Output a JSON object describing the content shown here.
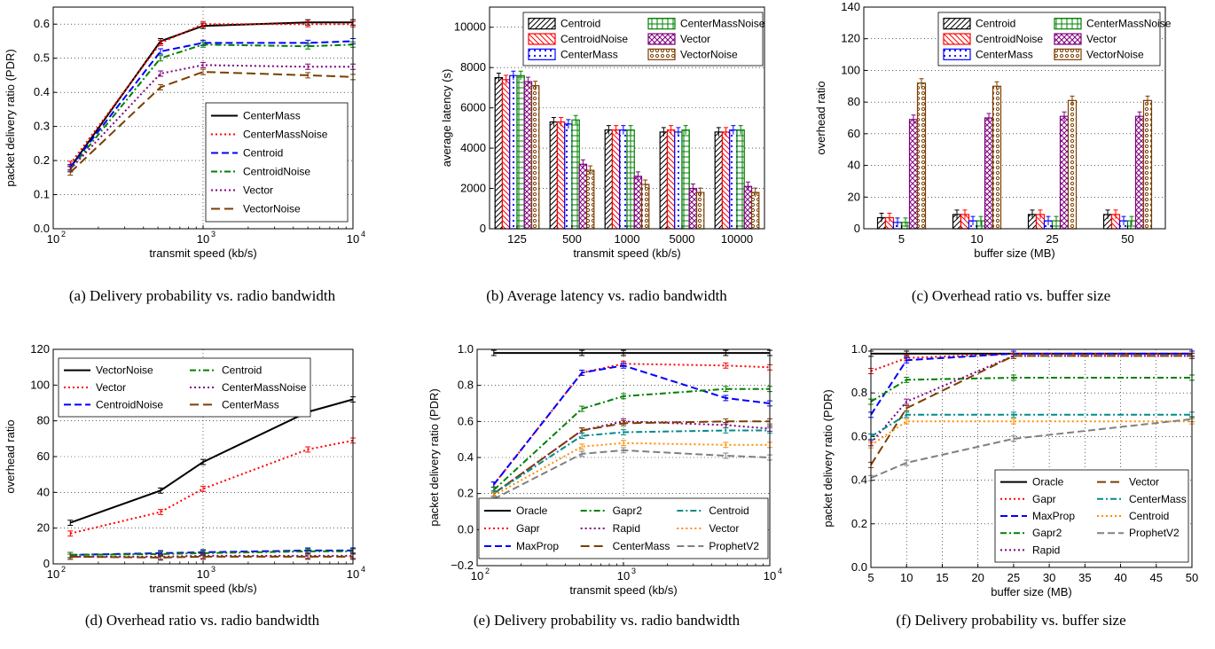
{
  "chart_data": [
    {
      "id": "a",
      "type": "line",
      "caption": "(a) Delivery probability vs. radio bandwidth",
      "xlabel": "transmit speed (kb/s)",
      "ylabel": "packet delivery ratio (PDR)",
      "xscale": "log",
      "xlim": [
        100,
        10000
      ],
      "ylim": [
        0,
        0.65
      ],
      "xticks": [
        100,
        1000,
        10000
      ],
      "xticklabels": [
        "10",
        "10",
        "10"
      ],
      "xtickexp": [
        "2",
        "3",
        "4"
      ],
      "yticks": [
        0,
        0.1,
        0.2,
        0.3,
        0.4,
        0.5,
        0.6
      ],
      "yticklabels": [
        "0.0",
        "0.1",
        "0.2",
        "0.3",
        "0.4",
        "0.5",
        "0.6"
      ],
      "grid": true,
      "legend_position": "lower-right",
      "x": [
        130,
        520,
        1000,
        5000,
        10000
      ],
      "series": [
        {
          "name": "CenterMass",
          "color": "#000000",
          "dash": "solid",
          "values": [
            0.18,
            0.55,
            0.595,
            0.605,
            0.605
          ]
        },
        {
          "name": "CenterMassNoise",
          "color": "#ff0000",
          "dash": "dot",
          "values": [
            0.19,
            0.545,
            0.6,
            0.6,
            0.6
          ]
        },
        {
          "name": "Centroid",
          "color": "#0000ff",
          "dash": "dash",
          "values": [
            0.18,
            0.52,
            0.545,
            0.545,
            0.55
          ]
        },
        {
          "name": "CentroidNoise",
          "color": "#008000",
          "dash": "dashdot",
          "values": [
            0.175,
            0.5,
            0.54,
            0.535,
            0.54
          ]
        },
        {
          "name": "Vector",
          "color": "#800080",
          "dash": "dot",
          "values": [
            0.175,
            0.455,
            0.48,
            0.475,
            0.475
          ]
        },
        {
          "name": "VectorNoise",
          "color": "#7b3f00",
          "dash": "longdash",
          "values": [
            0.165,
            0.415,
            0.46,
            0.45,
            0.445
          ]
        }
      ]
    },
    {
      "id": "b",
      "type": "bar",
      "caption": "(b) Average latency vs. radio bandwidth",
      "xlabel": "transmit speed (kb/s)",
      "ylabel": "average latency (s)",
      "ylim": [
        0,
        11000
      ],
      "yticks": [
        0,
        2000,
        4000,
        6000,
        8000,
        10000
      ],
      "yticklabels": [
        "0",
        "2000",
        "4000",
        "6000",
        "8000",
        "10000"
      ],
      "grid": true,
      "legend_position": "top",
      "categories": [
        "125",
        "500",
        "1000",
        "5000",
        "10000"
      ],
      "series": [
        {
          "name": "Centroid",
          "color": "#000000",
          "hatch": "diag",
          "values": [
            7500,
            5300,
            4900,
            4800,
            4800
          ]
        },
        {
          "name": "CentroidNoise",
          "color": "#ff0000",
          "hatch": "back",
          "values": [
            7400,
            5300,
            4900,
            4900,
            4800
          ]
        },
        {
          "name": "CenterMass",
          "color": "#0000ff",
          "hatch": "dots",
          "values": [
            7600,
            5200,
            4900,
            4800,
            4900
          ]
        },
        {
          "name": "CenterMassNoise",
          "color": "#008000",
          "hatch": "grid",
          "values": [
            7600,
            5400,
            4900,
            4900,
            4900
          ]
        },
        {
          "name": "Vector",
          "color": "#800080",
          "hatch": "cross",
          "values": [
            7300,
            3200,
            2600,
            2000,
            2100
          ]
        },
        {
          "name": "VectorNoise",
          "color": "#7b3f00",
          "hatch": "circles",
          "values": [
            7100,
            2900,
            2200,
            1800,
            1800
          ]
        }
      ]
    },
    {
      "id": "c",
      "type": "bar",
      "caption": "(c) Overhead ratio vs. buffer size",
      "xlabel": "buffer size (MB)",
      "ylabel": "overhead ratio",
      "ylim": [
        0,
        140
      ],
      "yticks": [
        0,
        20,
        40,
        60,
        80,
        100,
        120,
        140
      ],
      "yticklabels": [
        "0",
        "20",
        "40",
        "60",
        "80",
        "100",
        "120",
        "140"
      ],
      "grid": true,
      "legend_position": "top",
      "categories": [
        "5",
        "10",
        "25",
        "50"
      ],
      "series": [
        {
          "name": "Centroid",
          "color": "#000000",
          "hatch": "diag",
          "values": [
            7,
            9,
            9,
            9
          ]
        },
        {
          "name": "CentroidNoise",
          "color": "#ff0000",
          "hatch": "back",
          "values": [
            7,
            9,
            9,
            9
          ]
        },
        {
          "name": "CenterMass",
          "color": "#0000ff",
          "hatch": "dots",
          "values": [
            4,
            5,
            5,
            5
          ]
        },
        {
          "name": "CenterMassNoise",
          "color": "#008000",
          "hatch": "grid",
          "values": [
            4,
            5,
            5,
            5
          ]
        },
        {
          "name": "Vector",
          "color": "#800080",
          "hatch": "cross",
          "values": [
            69,
            70,
            71,
            71
          ]
        },
        {
          "name": "VectorNoise",
          "color": "#7b3f00",
          "hatch": "circles",
          "values": [
            92,
            90,
            81,
            81
          ]
        }
      ]
    },
    {
      "id": "d",
      "type": "line",
      "caption": "(d) Overhead ratio vs. radio bandwidth",
      "xlabel": "transmit speed (kb/s)",
      "ylabel": "overhead ratio",
      "xscale": "log",
      "xlim": [
        100,
        10000
      ],
      "ylim": [
        0,
        120
      ],
      "xticks": [
        100,
        1000,
        10000
      ],
      "xticklabels": [
        "10",
        "10",
        "10"
      ],
      "xtickexp": [
        "2",
        "3",
        "4"
      ],
      "yticks": [
        0,
        20,
        40,
        60,
        80,
        100,
        120
      ],
      "yticklabels": [
        "0",
        "20",
        "40",
        "60",
        "80",
        "100",
        "120"
      ],
      "grid": true,
      "legend_position": "top",
      "legend_columns": 2,
      "x": [
        130,
        520,
        1000,
        5000,
        10000
      ],
      "series": [
        {
          "name": "VectorNoise",
          "color": "#000000",
          "dash": "solid",
          "values": [
            23,
            41,
            57,
            85,
            92
          ]
        },
        {
          "name": "Vector",
          "color": "#ff0000",
          "dash": "dot",
          "values": [
            17,
            29,
            42,
            64,
            69
          ]
        },
        {
          "name": "CentroidNoise",
          "color": "#0000ff",
          "dash": "dash",
          "values": [
            5,
            6,
            6.5,
            7.5,
            7.5
          ]
        },
        {
          "name": "Centroid",
          "color": "#008000",
          "dash": "dashdot",
          "values": [
            5,
            5.5,
            6,
            7,
            7
          ]
        },
        {
          "name": "CenterMassNoise",
          "color": "#800080",
          "dash": "dot",
          "values": [
            4,
            4,
            4.5,
            4.5,
            4.5
          ]
        },
        {
          "name": "CenterMass",
          "color": "#7b3f00",
          "dash": "longdash",
          "values": [
            4,
            3.5,
            4,
            4,
            4
          ]
        }
      ]
    },
    {
      "id": "e",
      "type": "line",
      "caption": "(e) Delivery probability vs. radio bandwidth",
      "xlabel": "transmit speed (kb/s)",
      "ylabel": "packet delivery ratio (PDR)",
      "xscale": "log",
      "xlim": [
        100,
        10000
      ],
      "ylim": [
        -0.2,
        1.0
      ],
      "xticks": [
        100,
        1000,
        10000
      ],
      "xticklabels": [
        "10",
        "10",
        "10"
      ],
      "xtickexp": [
        "2",
        "3",
        "4"
      ],
      "yticks": [
        -0.2,
        0,
        0.2,
        0.4,
        0.6,
        0.8,
        1.0
      ],
      "yticklabels": [
        "−0.2",
        "0.0",
        "0.2",
        "0.4",
        "0.6",
        "0.8",
        "1.0"
      ],
      "grid": true,
      "legend_position": "lower",
      "legend_columns": 3,
      "x": [
        130,
        520,
        1000,
        5000,
        10000
      ],
      "series": [
        {
          "name": "Oracle",
          "color": "#000000",
          "dash": "solid",
          "values": [
            0.98,
            0.98,
            0.98,
            0.98,
            0.98
          ]
        },
        {
          "name": "Gapr",
          "color": "#ff0000",
          "dash": "dot",
          "values": [
            0.25,
            0.87,
            0.92,
            0.91,
            0.9
          ]
        },
        {
          "name": "MaxProp",
          "color": "#0000ff",
          "dash": "dash",
          "values": [
            0.25,
            0.87,
            0.91,
            0.73,
            0.7
          ]
        },
        {
          "name": "Gapr2",
          "color": "#008000",
          "dash": "dashdot",
          "values": [
            0.22,
            0.67,
            0.74,
            0.78,
            0.78
          ]
        },
        {
          "name": "Rapid",
          "color": "#800080",
          "dash": "dot",
          "values": [
            0.2,
            0.55,
            0.6,
            0.58,
            0.56
          ]
        },
        {
          "name": "CenterMass",
          "color": "#7b3f00",
          "dash": "longdash",
          "values": [
            0.2,
            0.55,
            0.59,
            0.6,
            0.6
          ]
        },
        {
          "name": "Centroid",
          "color": "#008b8b",
          "dash": "dashdot",
          "values": [
            0.2,
            0.52,
            0.54,
            0.55,
            0.55
          ]
        },
        {
          "name": "Vector",
          "color": "#ff8c00",
          "dash": "dot",
          "values": [
            0.19,
            0.46,
            0.48,
            0.47,
            0.47
          ]
        },
        {
          "name": "ProphetV2",
          "color": "#808080",
          "dash": "dash",
          "values": [
            0.17,
            0.42,
            0.44,
            0.41,
            0.4
          ]
        }
      ]
    },
    {
      "id": "f",
      "type": "line",
      "caption": "(f) Delivery probability vs. buffer size",
      "xlabel": "buffer size (MB)",
      "ylabel": "packet delivery ratio (PDR)",
      "xscale": "linear",
      "xlim": [
        5,
        50
      ],
      "ylim": [
        0,
        1.0
      ],
      "xticks": [
        5,
        10,
        15,
        20,
        25,
        30,
        35,
        40,
        45,
        50
      ],
      "xticklabels": [
        "5",
        "10",
        "15",
        "20",
        "25",
        "30",
        "35",
        "40",
        "45",
        "50"
      ],
      "yticks": [
        0,
        0.2,
        0.4,
        0.6,
        0.8,
        1.0
      ],
      "yticklabels": [
        "0.0",
        "0.2",
        "0.4",
        "0.6",
        "0.8",
        "1.0"
      ],
      "grid": true,
      "legend_position": "lower-right",
      "legend_columns": 2,
      "x": [
        5,
        10,
        25,
        50
      ],
      "series": [
        {
          "name": "Oracle",
          "color": "#000000",
          "dash": "solid",
          "values": [
            0.98,
            0.98,
            0.98,
            0.98
          ]
        },
        {
          "name": "Gapr",
          "color": "#ff0000",
          "dash": "dot",
          "values": [
            0.9,
            0.96,
            0.98,
            0.98
          ]
        },
        {
          "name": "MaxProp",
          "color": "#0000ff",
          "dash": "dash",
          "values": [
            0.7,
            0.95,
            0.98,
            0.98
          ]
        },
        {
          "name": "Gapr2",
          "color": "#008000",
          "dash": "dashdot",
          "values": [
            0.76,
            0.86,
            0.87,
            0.87
          ]
        },
        {
          "name": "Rapid",
          "color": "#800080",
          "dash": "dot",
          "values": [
            0.57,
            0.76,
            0.97,
            0.97
          ]
        },
        {
          "name": "Vector",
          "color": "#7b3f00",
          "dash": "longdash",
          "values": [
            0.47,
            0.73,
            0.97,
            0.97
          ]
        },
        {
          "name": "CenterMass",
          "color": "#008b8b",
          "dash": "dashdot",
          "values": [
            0.6,
            0.7,
            0.7,
            0.7
          ]
        },
        {
          "name": "Centroid",
          "color": "#ff8c00",
          "dash": "dot",
          "values": [
            0.56,
            0.67,
            0.67,
            0.67
          ]
        },
        {
          "name": "ProphetV2",
          "color": "#808080",
          "dash": "dash",
          "values": [
            0.41,
            0.48,
            0.59,
            0.68
          ]
        }
      ]
    }
  ]
}
